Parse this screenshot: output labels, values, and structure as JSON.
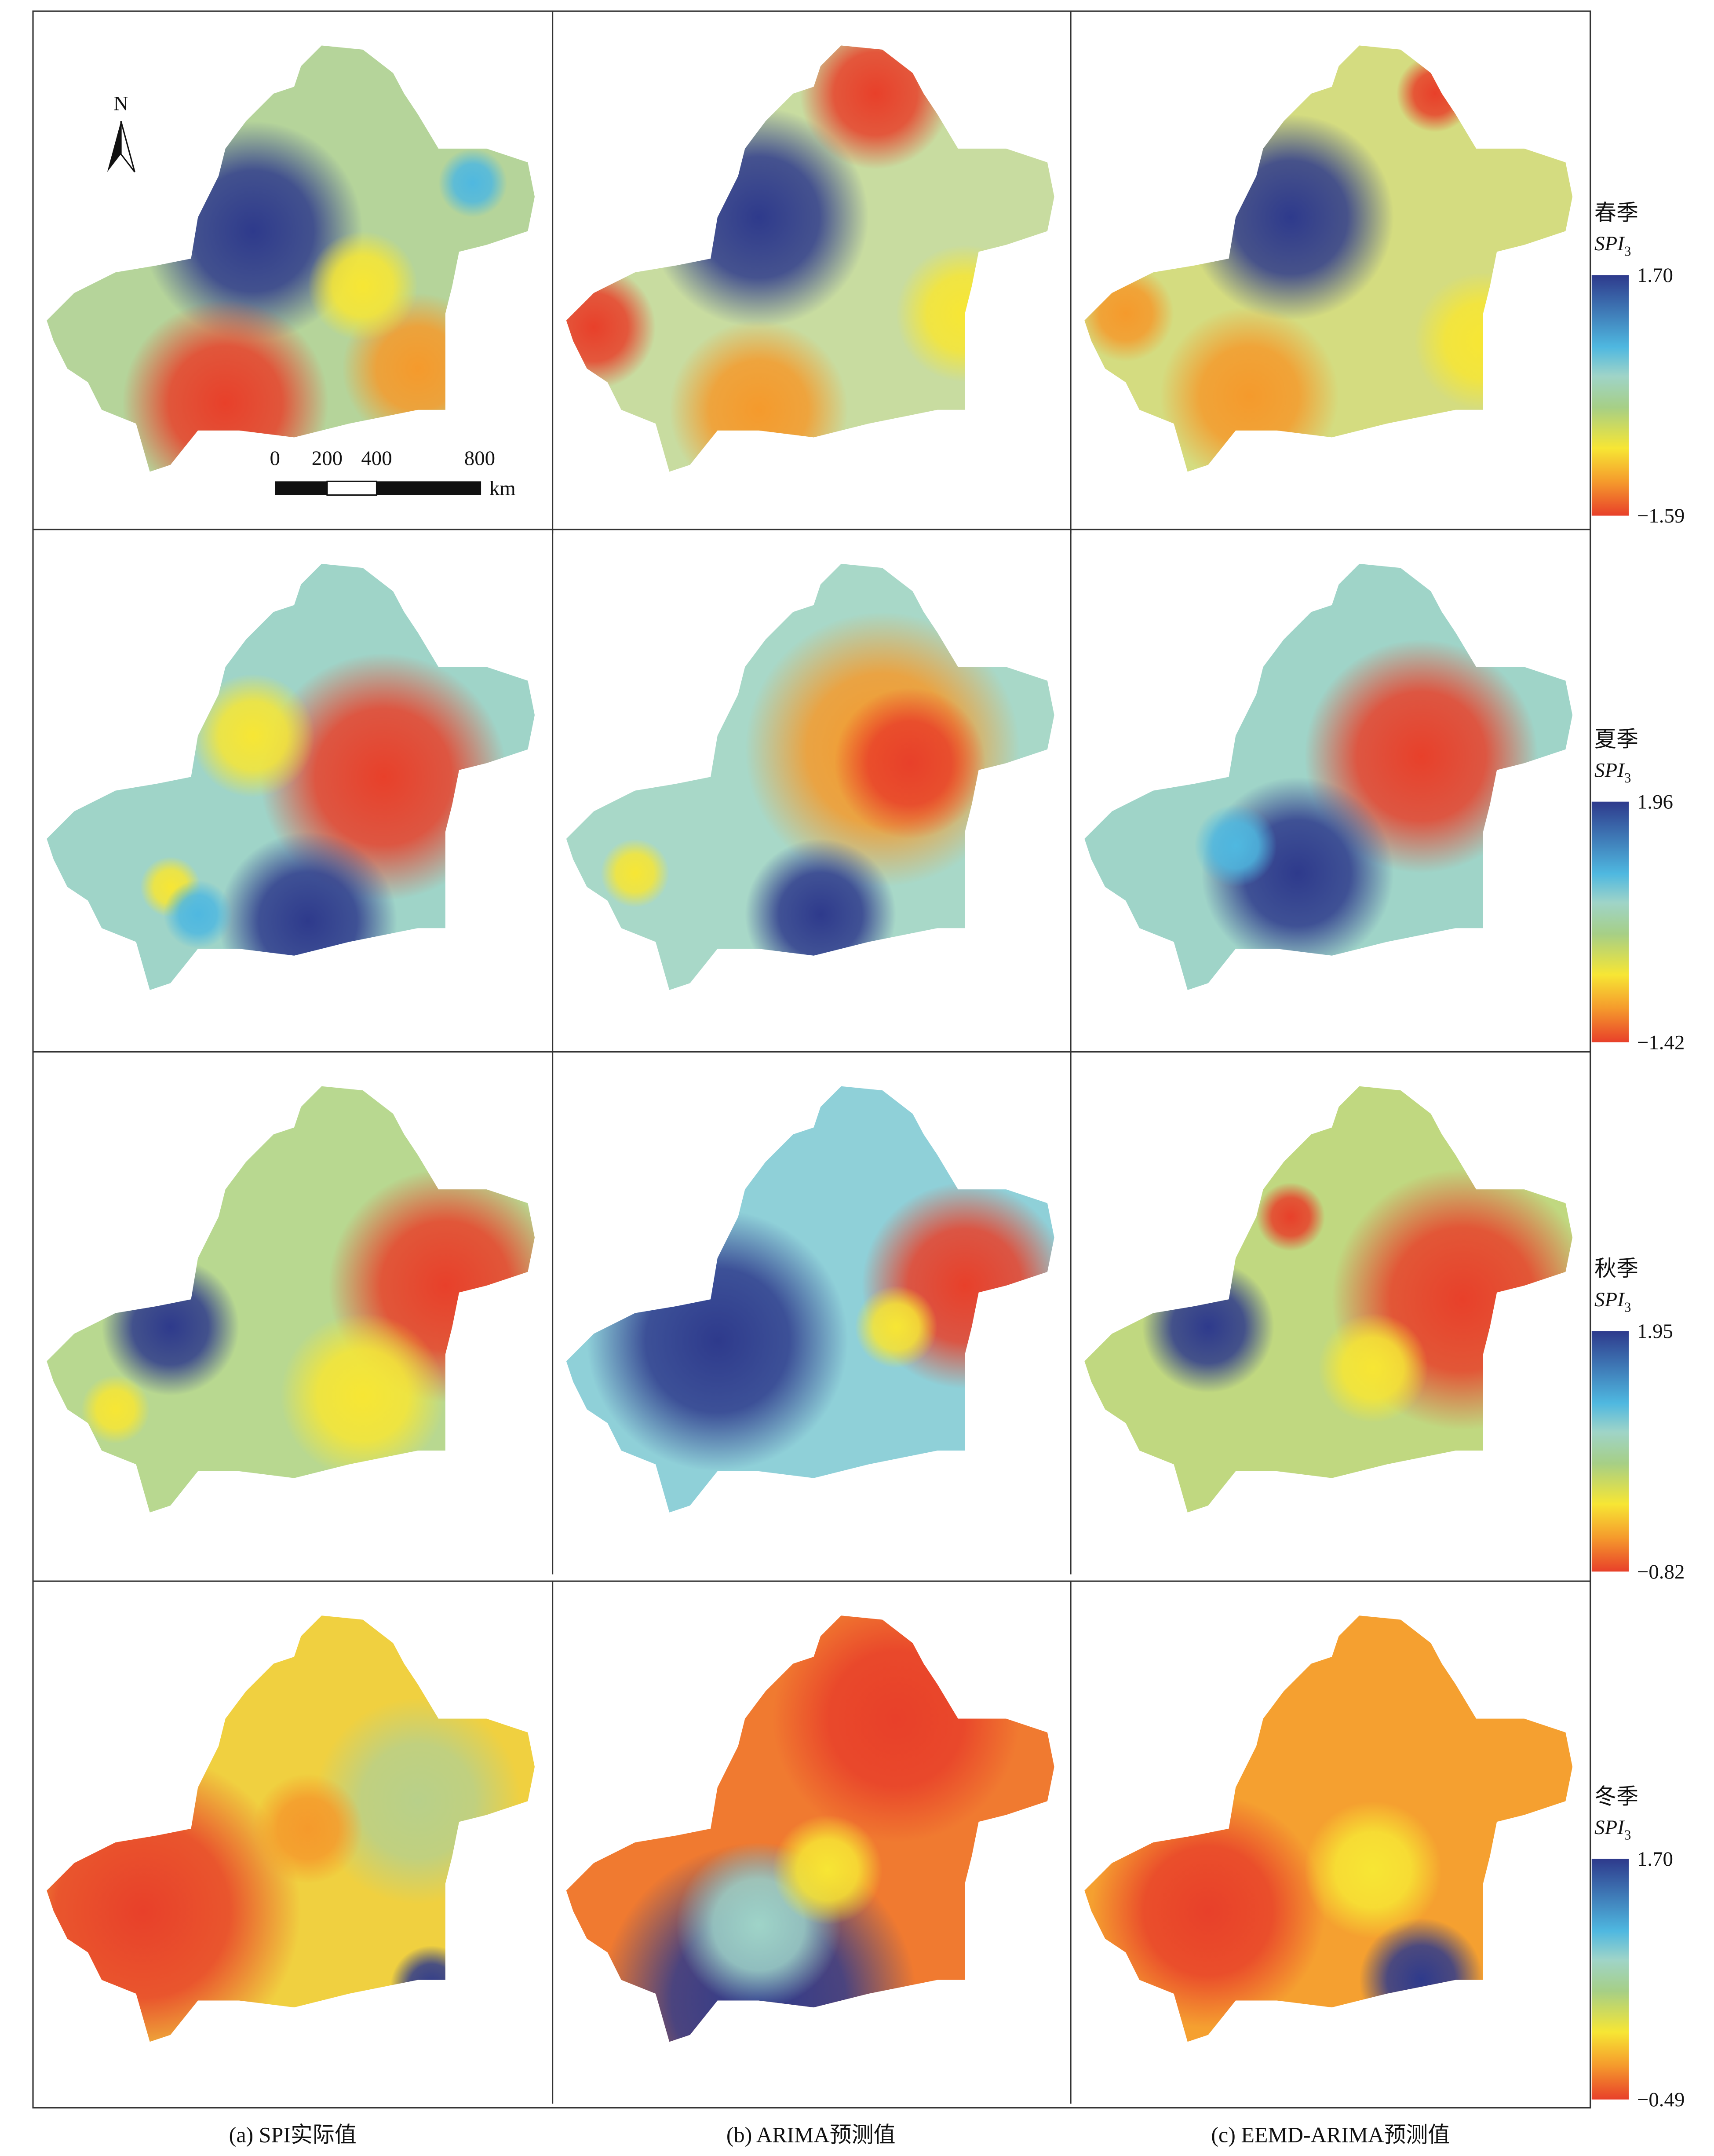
{
  "columns": [
    "(a) SPI实际值",
    "(b) ARIMA预测值",
    "(c) EEMD-ARIMA预测值"
  ],
  "rows": [
    {
      "season": "春季",
      "index": "SPI",
      "subscript": "3",
      "max": "1.70",
      "min": "−1.59"
    },
    {
      "season": "夏季",
      "index": "SPI",
      "subscript": "3",
      "max": "1.96",
      "min": "−1.42"
    },
    {
      "season": "秋季",
      "index": "SPI",
      "subscript": "3",
      "max": "1.95",
      "min": "−0.82"
    },
    {
      "season": "冬季",
      "index": "SPI",
      "subscript": "3",
      "max": "1.70",
      "min": "−0.49"
    }
  ],
  "scale_bar": {
    "labels": [
      "0",
      "200",
      "400",
      "800"
    ],
    "unit": "km"
  },
  "north_arrow": "N"
}
